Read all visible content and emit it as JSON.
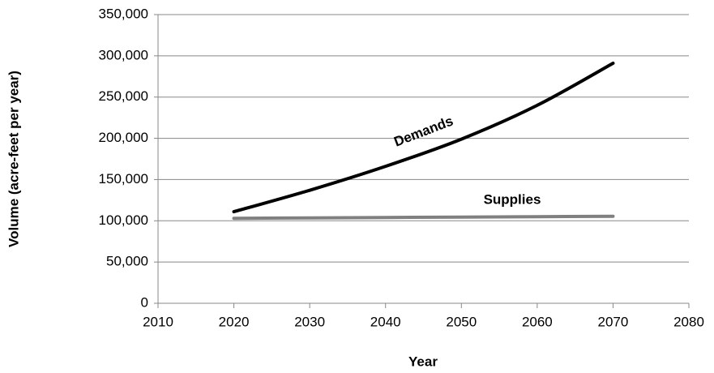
{
  "chart_data": {
    "type": "line",
    "x_label": "Year",
    "y_label": "Volume (acre-feet per year)",
    "x": [
      2020,
      2030,
      2040,
      2050,
      2060,
      2070
    ],
    "series": [
      {
        "name": "Demands",
        "color": "#000000",
        "values": [
          111000,
          137000,
          166000,
          199000,
          240000,
          291000
        ]
      },
      {
        "name": "Supplies",
        "color": "#808080",
        "values": [
          103000,
          103500,
          104000,
          104500,
          105000,
          105500
        ]
      }
    ],
    "xlim": [
      2010,
      2080
    ],
    "xticks": [
      2010,
      2020,
      2030,
      2040,
      2050,
      2060,
      2070,
      2080
    ],
    "ylim": [
      0,
      350000
    ],
    "yticks": [
      0,
      {
        "value": 50000,
        "label": "50,000"
      },
      {
        "value": 100000,
        "label": "100,000"
      },
      {
        "value": 150000,
        "label": "150,000"
      },
      {
        "value": 200000,
        "label": "200,000"
      },
      {
        "value": 250000,
        "label": "250,000"
      },
      {
        "value": 300000,
        "label": "300,000"
      },
      {
        "value": 350000,
        "label": "350,000"
      }
    ],
    "grid": true
  }
}
